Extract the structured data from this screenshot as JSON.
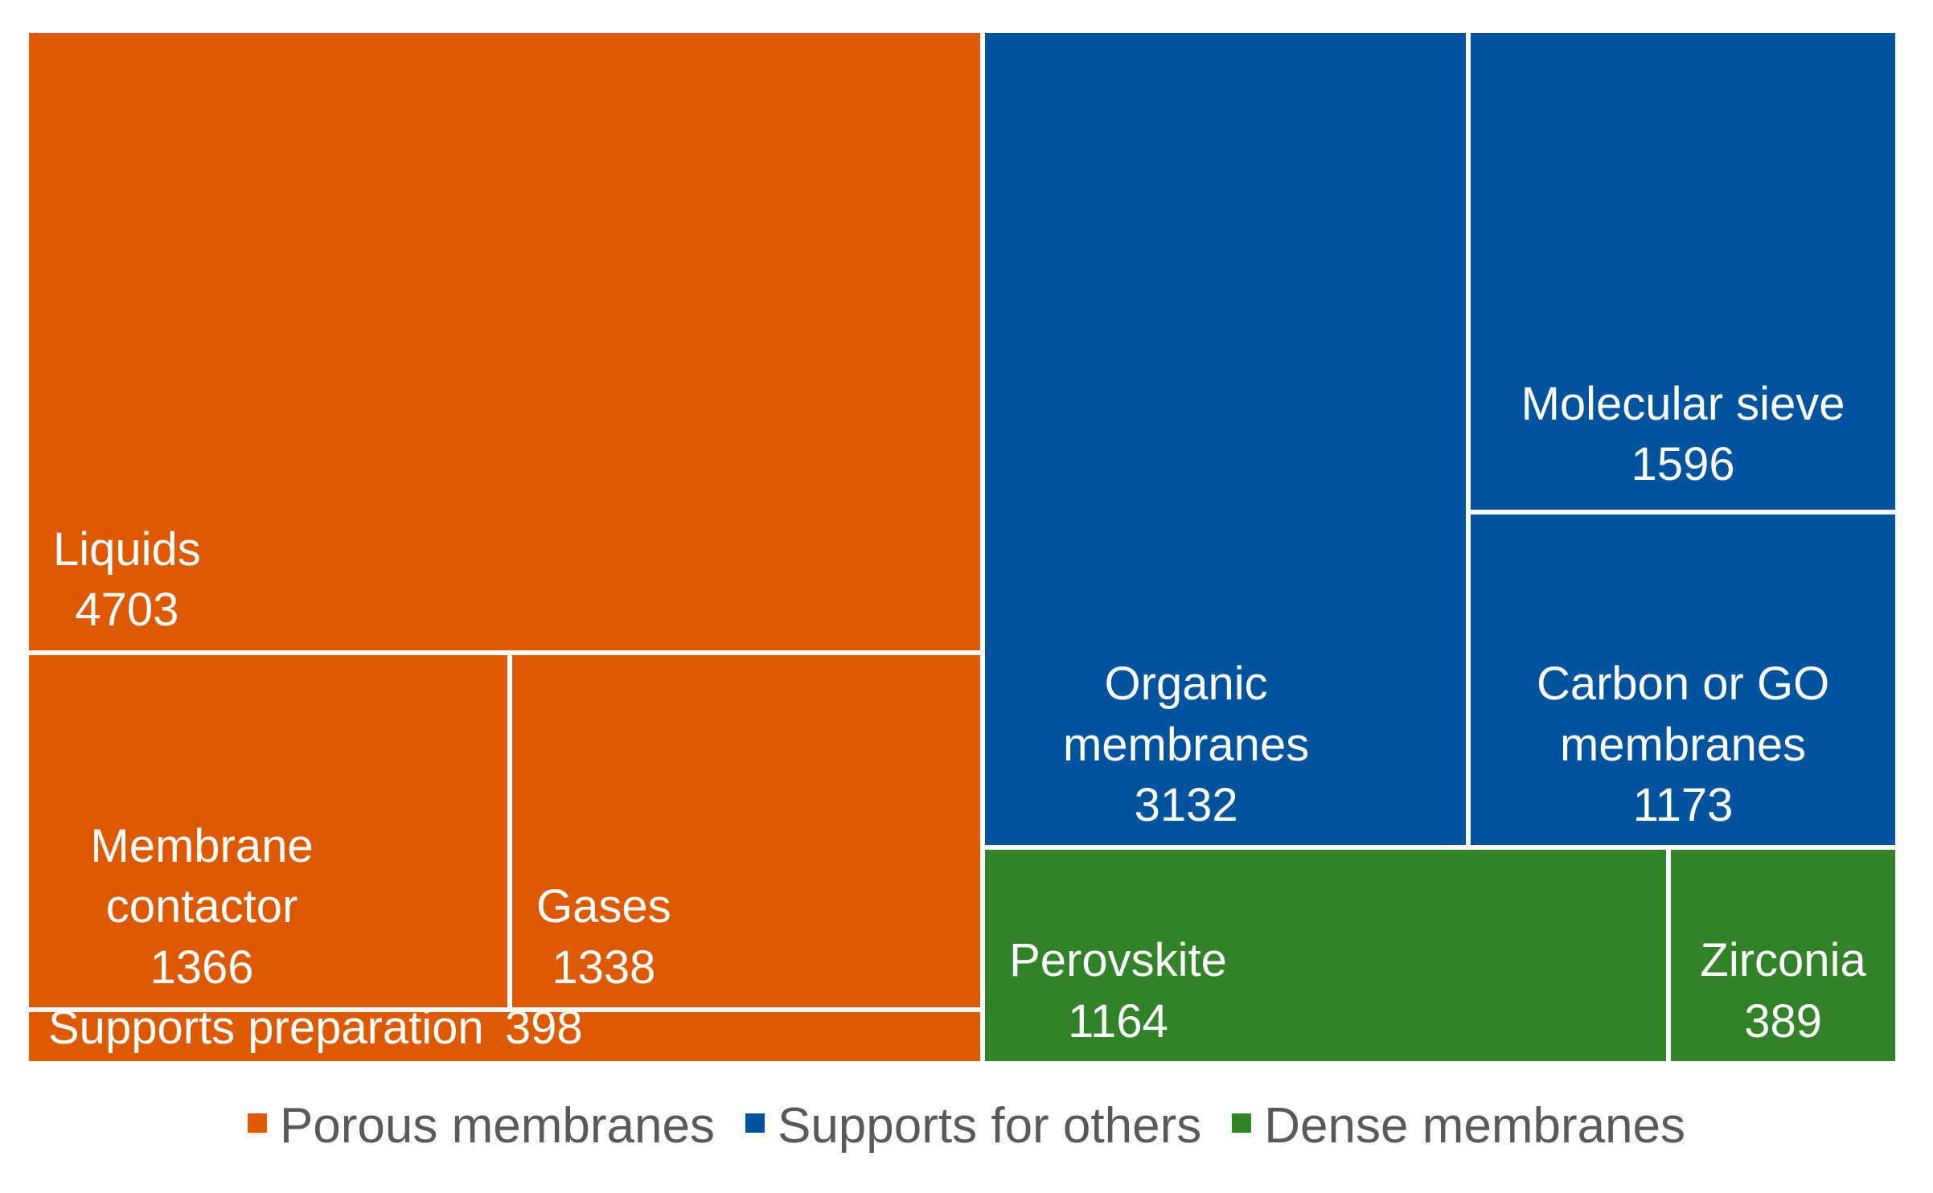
{
  "chart_data": {
    "type": "treemap",
    "title": "",
    "legend_position": "bottom",
    "text_color_on_cells": "#ffffff",
    "legend_text_color": "#595959",
    "background_color": "#ffffff",
    "groups": [
      {
        "name": "Porous membranes",
        "color": "#DE5A02",
        "items": [
          {
            "label": "Liquids",
            "value": 4703
          },
          {
            "label": "Membrane contactor",
            "value": 1366
          },
          {
            "label": "Gases",
            "value": 1338
          },
          {
            "label": "Supports preparation",
            "value": 398
          }
        ]
      },
      {
        "name": "Supports for others",
        "color": "#02539E",
        "items": [
          {
            "label": "Organic membranes",
            "value": 3132
          },
          {
            "label": "Molecular sieve",
            "value": 1596
          },
          {
            "label": "Carbon or GO membranes",
            "value": 1173
          }
        ]
      },
      {
        "name": "Dense membranes",
        "color": "#318229",
        "items": [
          {
            "label": "Perovskite",
            "value": 1164
          },
          {
            "label": "Zirconia",
            "value": 389
          }
        ]
      }
    ]
  }
}
